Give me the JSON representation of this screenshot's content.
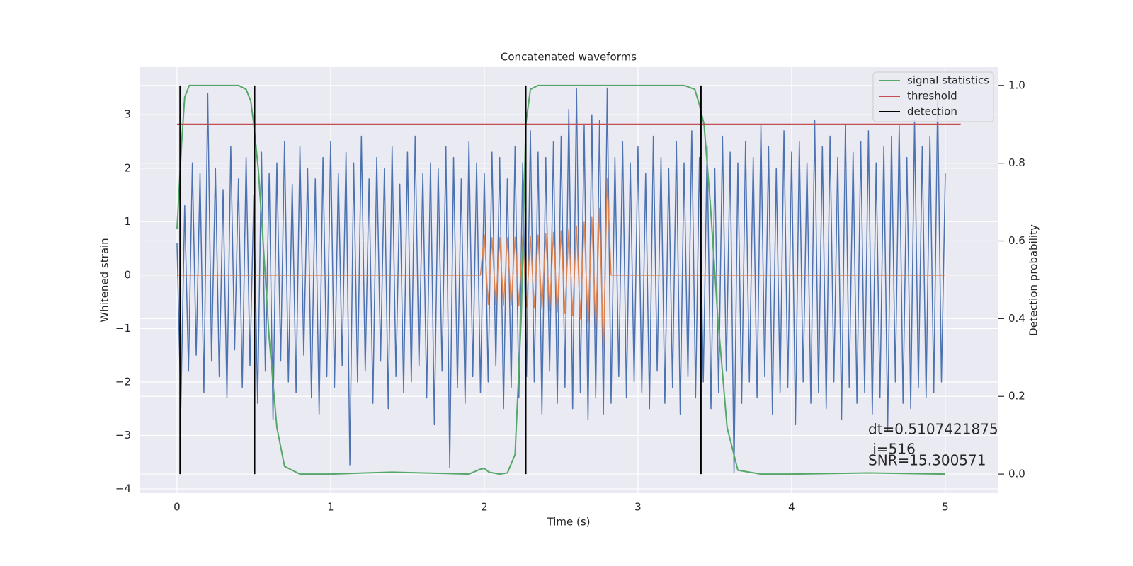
{
  "chart_data": {
    "type": "line",
    "title": "Concatenated waveforms",
    "xlabel": "Time (s)",
    "ylabel": "Whitened strain",
    "y2label": "Detection probability",
    "xlim": [
      -0.244,
      5.346
    ],
    "ylim": [
      -4.08,
      3.89
    ],
    "y2lim": [
      -0.049,
      1.047
    ],
    "xticks": [
      0,
      1,
      2,
      3,
      4,
      5
    ],
    "yticks": [
      {
        "value": -4,
        "label": "−4"
      },
      {
        "value": -3,
        "label": "−3"
      },
      {
        "value": -2,
        "label": "−2"
      },
      {
        "value": -1,
        "label": "−1"
      },
      0,
      1,
      2,
      3
    ],
    "y2ticks": [
      {
        "value": 0,
        "label": "0.0"
      },
      0.2,
      0.4,
      0.6,
      0.8,
      {
        "value": 1,
        "label": "1.0"
      }
    ],
    "grid": true,
    "legend": "upper right",
    "annotation": [
      "dt=0.5107421875",
      " i=516",
      "SNR=15.300571"
    ],
    "x": [
      0,
      0.025,
      0.05,
      0.075,
      0.1,
      0.125,
      0.15,
      0.175,
      0.2,
      0.225,
      0.25,
      0.275,
      0.3,
      0.325,
      0.35,
      0.375,
      0.4,
      0.425,
      0.45,
      0.475,
      0.5,
      0.525,
      0.55,
      0.575,
      0.6,
      0.625,
      0.65,
      0.675,
      0.7,
      0.725,
      0.75,
      0.775,
      0.8,
      0.825,
      0.85,
      0.875,
      0.9,
      0.925,
      0.95,
      0.975,
      1,
      1.025,
      1.05,
      1.075,
      1.1,
      1.125,
      1.15,
      1.175,
      1.2,
      1.225,
      1.25,
      1.275,
      1.3,
      1.325,
      1.35,
      1.375,
      1.4,
      1.425,
      1.45,
      1.475,
      1.5,
      1.525,
      1.55,
      1.575,
      1.6,
      1.625,
      1.65,
      1.675,
      1.7,
      1.725,
      1.75,
      1.775,
      1.8,
      1.825,
      1.85,
      1.875,
      1.9,
      1.925,
      1.95,
      1.975,
      2,
      2.025,
      2.05,
      2.075,
      2.1,
      2.125,
      2.15,
      2.175,
      2.2,
      2.225,
      2.25,
      2.275,
      2.3,
      2.325,
      2.35,
      2.375,
      2.4,
      2.425,
      2.45,
      2.475,
      2.5,
      2.525,
      2.55,
      2.575,
      2.6,
      2.625,
      2.65,
      2.675,
      2.7,
      2.725,
      2.75,
      2.775,
      2.8,
      2.825,
      2.85,
      2.875,
      2.9,
      2.925,
      2.95,
      2.975,
      3,
      3.025,
      3.05,
      3.075,
      3.1,
      3.125,
      3.15,
      3.175,
      3.2,
      3.225,
      3.25,
      3.275,
      3.3,
      3.325,
      3.35,
      3.375,
      3.4,
      3.425,
      3.45,
      3.475,
      3.5,
      3.525,
      3.55,
      3.575,
      3.6,
      3.625,
      3.65,
      3.675,
      3.7,
      3.725,
      3.75,
      3.775,
      3.8,
      3.825,
      3.85,
      3.875,
      3.9,
      3.925,
      3.95,
      3.975,
      4,
      4.025,
      4.05,
      4.075,
      4.1,
      4.125,
      4.15,
      4.175,
      4.2,
      4.225,
      4.25,
      4.275,
      4.3,
      4.325,
      4.35,
      4.375,
      4.4,
      4.425,
      4.45,
      4.475,
      4.5,
      4.525,
      4.55,
      4.575,
      4.6,
      4.625,
      4.65,
      4.675,
      4.7,
      4.725,
      4.75,
      4.775,
      4.8,
      4.825,
      4.85,
      4.875,
      4.9,
      4.925,
      4.95,
      4.975,
      5
    ],
    "series": [
      {
        "color": "#4c72b0",
        "values": [
          0.6,
          -2.5,
          1.3,
          -1.8,
          2.1,
          -1.5,
          1.9,
          -2.2,
          3.4,
          -1.6,
          2.0,
          -1.9,
          1.6,
          -2.3,
          2.4,
          -1.4,
          1.8,
          -2.1,
          2.2,
          -1.7,
          1.5,
          -2.4,
          2.3,
          -1.8,
          1.9,
          -2.7,
          2.1,
          -1.6,
          2.5,
          -2.0,
          1.7,
          -2.2,
          2.4,
          -1.5,
          2.0,
          -2.3,
          1.8,
          -2.6,
          2.2,
          -1.9,
          2.5,
          -2.1,
          1.9,
          -1.7,
          2.3,
          -3.55,
          2.1,
          -2.0,
          2.6,
          -1.8,
          1.8,
          -2.4,
          2.2,
          -1.6,
          2.0,
          -2.5,
          2.4,
          -1.9,
          1.7,
          -2.2,
          2.3,
          -2.0,
          2.6,
          -1.7,
          1.9,
          -2.3,
          2.1,
          -2.8,
          2.0,
          -1.8,
          2.4,
          -3.6,
          2.2,
          -2.1,
          1.8,
          -2.4,
          2.5,
          -1.9,
          2.1,
          -2.2,
          1.9,
          -2.0,
          2.3,
          -1.7,
          2.2,
          -2.5,
          1.8,
          -2.1,
          2.4,
          -2.3,
          2.1,
          -1.9,
          2.7,
          -2.0,
          2.3,
          -2.6,
          2.2,
          -1.8,
          2.5,
          -2.4,
          2.6,
          -2.1,
          3.1,
          -2.5,
          3.5,
          -2.2,
          2.8,
          -2.7,
          3.0,
          -2.3,
          2.9,
          -2.6,
          3.5,
          -2.4,
          2.2,
          -1.9,
          2.5,
          -2.3,
          2.1,
          -2.0,
          2.4,
          -2.2,
          1.9,
          -2.5,
          2.6,
          -1.8,
          2.2,
          -2.4,
          2.0,
          -2.1,
          2.5,
          -2.6,
          2.1,
          -1.9,
          2.7,
          -2.3,
          2.2,
          -2.0,
          2.4,
          -2.5,
          2.0,
          -2.2,
          2.6,
          -1.8,
          2.3,
          -3.7,
          2.1,
          -2.4,
          2.5,
          -2.0,
          2.2,
          -2.3,
          2.8,
          -1.9,
          2.4,
          -2.6,
          2.0,
          -2.2,
          2.7,
          -2.1,
          2.3,
          -2.8,
          2.5,
          -2.0,
          2.1,
          -2.4,
          2.9,
          -2.2,
          2.4,
          -2.5,
          2.6,
          -2.0,
          2.2,
          -2.7,
          2.8,
          -2.1,
          2.3,
          -2.4,
          2.5,
          -2.2,
          2.7,
          -2.6,
          2.1,
          -2.3,
          2.4,
          -2.9,
          2.6,
          -2.0,
          2.8,
          -2.4,
          2.2,
          -2.5,
          2.9,
          -2.1,
          2.4,
          -2.3,
          2.6,
          -2.2,
          3.3,
          -2.0,
          1.9
        ]
      },
      {
        "color": "#dd8452",
        "values": [
          0,
          0,
          0,
          0,
          0,
          0,
          0,
          0,
          0,
          0,
          0,
          0,
          0,
          0,
          0,
          0,
          0,
          0,
          0,
          0,
          0,
          0,
          0,
          0,
          0,
          0,
          0,
          0,
          0,
          0,
          0,
          0,
          0,
          0,
          0,
          0,
          0,
          0,
          0,
          0,
          0,
          0,
          0,
          0,
          0,
          0,
          0,
          0,
          0,
          0,
          0,
          0,
          0,
          0,
          0,
          0,
          0,
          0,
          0,
          0,
          0,
          0,
          0,
          0,
          0,
          0,
          0,
          0,
          0,
          0,
          0,
          0,
          0,
          0,
          0,
          0,
          0,
          0,
          0,
          0,
          0.75,
          -0.55,
          0.7,
          -0.55,
          0.7,
          -0.56,
          0.7,
          -0.57,
          0.71,
          -0.58,
          0.72,
          -0.6,
          0.73,
          -0.62,
          0.75,
          -0.64,
          0.77,
          -0.66,
          0.8,
          -0.69,
          0.83,
          -0.72,
          0.87,
          -0.76,
          0.92,
          -0.82,
          0.99,
          -0.9,
          1.08,
          -1.0,
          1.25,
          -1.5,
          1.8,
          0,
          0,
          0,
          0,
          0,
          0,
          0,
          0,
          0,
          0,
          0,
          0,
          0,
          0,
          0,
          0,
          0,
          0,
          0,
          0,
          0,
          0,
          0,
          0,
          0,
          0,
          0,
          0,
          0,
          0,
          0,
          0,
          0,
          0,
          0,
          0,
          0,
          0,
          0,
          0,
          0,
          0,
          0,
          0,
          0,
          0,
          0,
          0,
          0,
          0,
          0,
          0,
          0,
          0,
          0,
          0,
          0,
          0,
          0,
          0,
          0,
          0,
          0,
          0,
          0,
          0,
          0,
          0,
          0,
          0,
          0,
          0,
          0,
          0,
          0,
          0,
          0,
          0,
          0,
          0,
          0,
          0,
          0,
          0,
          0,
          0,
          0,
          0
        ]
      },
      {
        "name": "signal statistics",
        "color": "#55a868",
        "axis": "y2",
        "x": [
          0,
          0.03,
          0.05,
          0.08,
          0.12,
          0.2,
          0.3,
          0.4,
          0.45,
          0.48,
          0.5,
          0.53,
          0.56,
          0.6,
          0.65,
          0.7,
          0.8,
          1.0,
          1.4,
          1.6,
          1.9,
          1.97,
          2.0,
          2.03,
          2.1,
          2.15,
          2.2,
          2.24,
          2.27,
          2.3,
          2.35,
          2.4,
          2.6,
          3.0,
          3.3,
          3.37,
          3.4,
          3.43,
          3.47,
          3.52,
          3.58,
          3.65,
          3.8,
          4.0,
          4.5,
          5.0
        ],
        "values": [
          0.63,
          0.85,
          0.97,
          1.0,
          1.0,
          1.0,
          1.0,
          1.0,
          0.99,
          0.96,
          0.9,
          0.78,
          0.6,
          0.35,
          0.12,
          0.02,
          0.0,
          0.0,
          0.005,
          0.003,
          0.0,
          0.012,
          0.015,
          0.005,
          0.0,
          0.003,
          0.05,
          0.4,
          0.9,
          0.99,
          1.0,
          1.0,
          1.0,
          1.0,
          1.0,
          0.99,
          0.95,
          0.9,
          0.7,
          0.4,
          0.12,
          0.01,
          0.0,
          0.0,
          0.003,
          0.0
        ]
      },
      {
        "name": "threshold",
        "color": "#c44e52",
        "axis": "y2",
        "x": [
          0,
          5.1
        ],
        "values": [
          0.9,
          0.9
        ]
      },
      {
        "name": "detection",
        "color": "#000000",
        "axis": "y2",
        "kind": "vlines",
        "x": [
          0.02,
          0.505,
          2.27,
          3.41
        ],
        "ymin": 0,
        "ymax": 1
      }
    ]
  }
}
